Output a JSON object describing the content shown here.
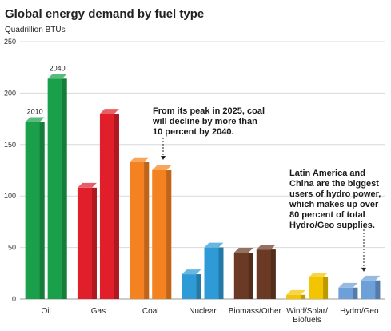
{
  "chart_data": {
    "type": "bar",
    "title": "Global energy demand by fuel type",
    "ylabel": "Quadrillion BTUs",
    "ylim": [
      0,
      250
    ],
    "yticks": [
      0,
      50,
      100,
      150,
      200,
      250
    ],
    "categories": [
      "Oil",
      "Gas",
      "Coal",
      "Nuclear",
      "Biomass/Other",
      "Wind/Solar/Biofuels",
      "Hydro/Geo"
    ],
    "category_labels": [
      [
        "Oil"
      ],
      [
        "Gas"
      ],
      [
        "Coal"
      ],
      [
        "Nuclear"
      ],
      [
        "Biomass/Other"
      ],
      [
        "Wind/Solar/",
        "Biofuels"
      ],
      [
        "Hydro/Geo"
      ]
    ],
    "series": [
      {
        "name": "2010",
        "values": [
          172,
          108,
          133,
          24,
          45,
          4,
          11
        ]
      },
      {
        "name": "2040",
        "values": [
          214,
          180,
          125,
          50,
          48,
          21,
          18
        ]
      }
    ],
    "category_colors": [
      "#1aa04a",
      "#e11f2a",
      "#f58220",
      "#2e9bd6",
      "#6b3a24",
      "#f2c500",
      "#6d9fd8"
    ],
    "grid": true,
    "annotations": [
      {
        "lines": [
          "From its peak in 2025, coal",
          "will decline by more than",
          "10 percent by 2040."
        ],
        "points_to": "Coal 2040"
      },
      {
        "lines": [
          "Latin America and",
          "China are the biggest",
          "users of hydro power,",
          "which makes up over",
          "80 percent of total",
          "Hydro/Geo supplies."
        ],
        "points_to": "Hydro/Geo 2040"
      }
    ]
  }
}
